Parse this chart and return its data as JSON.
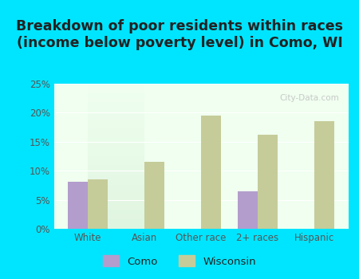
{
  "title": "Breakdown of poor residents within races\n(income below poverty level) in Como, WI",
  "categories": [
    "White",
    "Asian",
    "Other race",
    "2+ races",
    "Hispanic"
  ],
  "como_values": [
    8.1,
    0,
    0,
    6.5,
    0
  ],
  "wisconsin_values": [
    8.5,
    11.5,
    19.5,
    16.2,
    18.5
  ],
  "como_color": "#b39dcc",
  "wisconsin_color": "#c5cc99",
  "background_color": "#00e5ff",
  "plot_bg_top": "#f0fff0",
  "plot_bg_bottom": "#e0f5e0",
  "ylim": [
    0,
    25
  ],
  "yticks": [
    0,
    5,
    10,
    15,
    20,
    25
  ],
  "ytick_labels": [
    "0%",
    "5%",
    "10%",
    "15%",
    "20%",
    "25%"
  ],
  "title_fontsize": 12.5,
  "bar_width": 0.35,
  "legend_como": "Como",
  "legend_wisconsin": "Wisconsin",
  "tick_color": "#555555",
  "title_color": "#222222",
  "watermark": "City-Data.com"
}
